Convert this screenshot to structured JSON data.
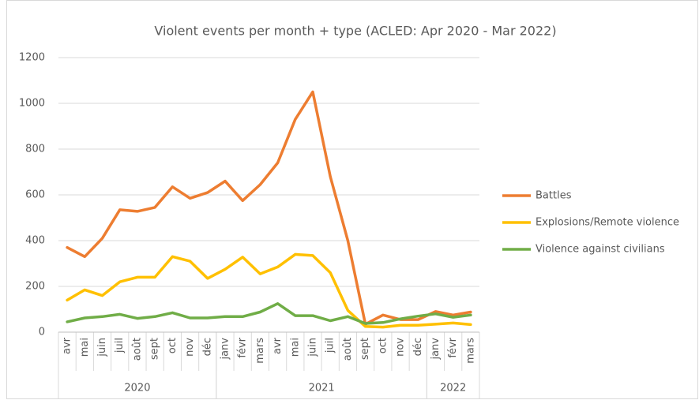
{
  "chart_data": {
    "type": "line",
    "title": "Violent events per month + type (ACLED: Apr 2020 - Mar 2022)",
    "category_groups": [
      {
        "label": "2020",
        "categories": [
          "avr",
          "mai",
          "juin",
          "juil",
          "août",
          "sept",
          "oct",
          "nov",
          "déc"
        ]
      },
      {
        "label": "2021",
        "categories": [
          "janv",
          "févr",
          "mars",
          "avr",
          "mai",
          "juin",
          "juil",
          "août",
          "sept",
          "oct",
          "nov",
          "déc"
        ]
      },
      {
        "label": "2022",
        "categories": [
          "janv",
          "févr",
          "mars"
        ]
      }
    ],
    "series": [
      {
        "name": "Battles",
        "color": "#ed7d31",
        "values": [
          370,
          330,
          410,
          535,
          528,
          545,
          635,
          585,
          610,
          660,
          575,
          645,
          740,
          930,
          1050,
          680,
          400,
          35,
          75,
          55,
          55,
          90,
          75,
          88
        ]
      },
      {
        "name": "Explosions/Remote violence",
        "color": "#ffc000",
        "values": [
          140,
          185,
          160,
          220,
          240,
          240,
          330,
          310,
          235,
          275,
          328,
          255,
          285,
          340,
          335,
          260,
          95,
          25,
          22,
          30,
          30,
          35,
          40,
          33
        ]
      },
      {
        "name": "Violence against civilians",
        "color": "#70ad47",
        "values": [
          45,
          62,
          68,
          78,
          60,
          68,
          85,
          62,
          62,
          68,
          68,
          88,
          125,
          72,
          72,
          50,
          68,
          38,
          42,
          58,
          70,
          80,
          65,
          75
        ]
      }
    ],
    "ylim": [
      0,
      1200
    ],
    "yticks": [
      0,
      200,
      400,
      600,
      800,
      1000,
      1200
    ],
    "grid": true,
    "legend": "right"
  }
}
